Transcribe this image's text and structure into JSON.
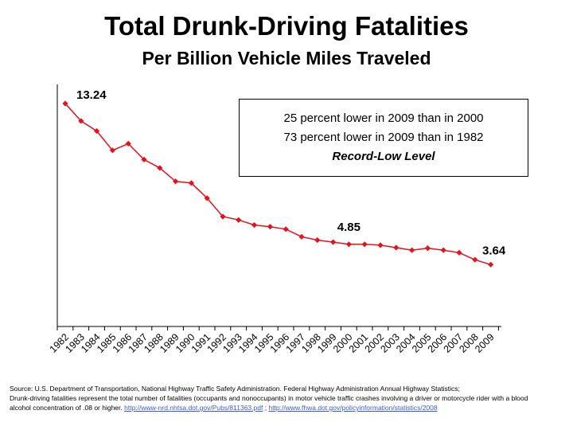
{
  "title": "Total Drunk-Driving Fatalities",
  "subtitle": "Per Billion Vehicle Miles Traveled",
  "callout": {
    "line1": "25 percent lower in 2009 than in 2000",
    "line2": "73 percent lower in 2009 than in 1982",
    "line3": "Record-Low Level"
  },
  "colors": {
    "series": "#e8101c",
    "axis": "#000000",
    "link": "#3b5bd6"
  },
  "source": {
    "line1": "Source: U.S. Department of Transportation, National Highway Traffic Safety Administration.  Federal Highway Administration Annual Highway Statistics;",
    "line2": "Drunk-driving fatalities represent the total number of fatalities (occupants and nonoccupants) in motor vehicle traffic crashes involving a driver or motorcycle rider with a blood",
    "line3_prefix": "alcohol concentration of .08 or higher.",
    "link1": "http://www-nrd.nhtsa.dot.gov/Pubs/811363.pdf",
    "separator": ";",
    "link2": "http://www.fhwa.dot.gov/policyinformation/statistics/2008"
  },
  "chart_data": {
    "type": "line",
    "title": "Total Drunk-Driving Fatalities",
    "subtitle": "Per Billion Vehicle Miles Traveled",
    "xlabel": "",
    "ylabel": "",
    "grid": false,
    "legend": "none",
    "ylim": [
      0,
      14
    ],
    "x": [
      "1982",
      "1983",
      "1984",
      "1985",
      "1986",
      "1987",
      "1988",
      "1989",
      "1990",
      "1991",
      "1992",
      "1993",
      "1994",
      "1995",
      "1996",
      "1997",
      "1998",
      "1999",
      "2000",
      "2001",
      "2002",
      "2003",
      "2004",
      "2005",
      "2006",
      "2007",
      "2008",
      "2009"
    ],
    "series": [
      {
        "values": [
          13.24,
          12.2,
          11.6,
          10.45,
          10.85,
          9.9,
          9.4,
          8.6,
          8.5,
          7.6,
          6.5,
          6.3,
          6.0,
          5.9,
          5.75,
          5.3,
          5.1,
          4.98,
          4.85,
          4.85,
          4.8,
          4.65,
          4.5,
          4.62,
          4.5,
          4.35,
          3.93,
          3.64
        ]
      }
    ],
    "data_labels": [
      {
        "x": "1982",
        "text": "13.24"
      },
      {
        "x": "2000",
        "text": "4.85"
      },
      {
        "x": "2009",
        "text": "3.64"
      }
    ]
  }
}
